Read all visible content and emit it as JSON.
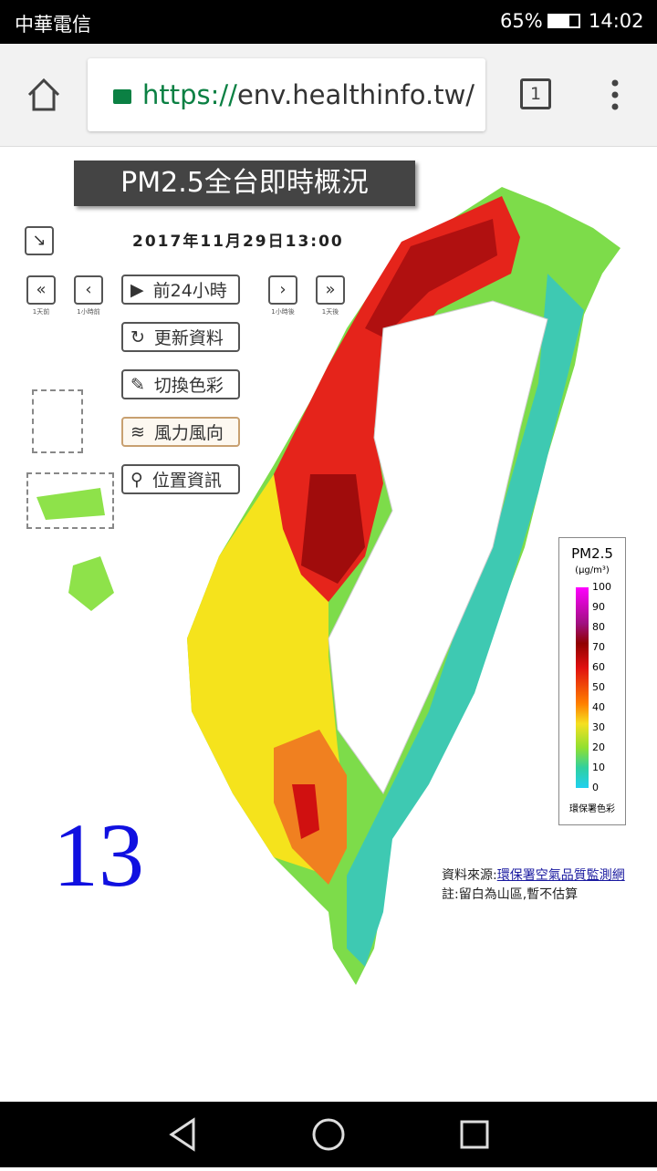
{
  "status_bar": {
    "carrier": "中華電信",
    "battery": "65%",
    "time": "14:02"
  },
  "browser": {
    "url_scheme": "https://",
    "url_host": "env.healthinfo.tw/",
    "tab_count": "1"
  },
  "map": {
    "title": "PM2.5全台即時概況",
    "datetime": "2017年11月29日13:00",
    "time_nav": [
      "1天前",
      "1小時前",
      "1小時後",
      "1天後"
    ],
    "buttons": [
      "前24小時",
      "更新資料",
      "切換色彩",
      "風力風向",
      "位置資訊"
    ],
    "legend": {
      "title": "PM2.5",
      "unit": "(μg/m³)",
      "ticks": [
        100,
        90,
        80,
        70,
        60,
        50,
        40,
        30,
        20,
        10,
        0
      ],
      "note": "環保署色彩"
    },
    "source_label": "資料來源:",
    "source_link": "環保署空氣品質監測網",
    "note": "註:留白為山區,暫不估算",
    "overlay_number": "13"
  }
}
